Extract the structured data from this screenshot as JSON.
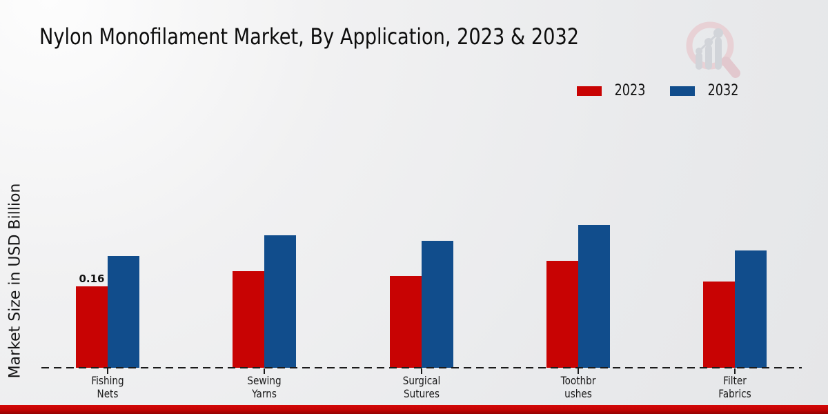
{
  "page": {
    "title": "Nylon Monofilament Market, By Application, 2023 & 2032",
    "background_color": "#ebecee",
    "bottom_bar_color": "#c20404"
  },
  "logo": {
    "name": "market-research-future-watermark",
    "ring_color": "#e8cdd2",
    "bars_color": "#ced1d6"
  },
  "chart_data": {
    "type": "bar",
    "title": "Nylon Monofilament Market, By Application, 2023 & 2032",
    "xlabel": "",
    "ylabel": "Market Size in USD Billion",
    "categories": [
      "Fishing Nets",
      "Sewing Yarns",
      "Surgical Sutures",
      "Toothbrushes",
      "Filter Fabrics"
    ],
    "category_lines": [
      [
        "Fishing",
        "Nets"
      ],
      [
        "Sewing",
        "Yarns"
      ],
      [
        "Surgical",
        "Sutures"
      ],
      [
        "Toothbr",
        "ushes"
      ],
      [
        "Filter",
        "Fabrics"
      ]
    ],
    "series": [
      {
        "name": "2023",
        "color": "#c80303",
        "values": [
          0.16,
          0.19,
          0.18,
          0.21,
          0.17
        ]
      },
      {
        "name": "2032",
        "color": "#114d8c",
        "values": [
          0.22,
          0.26,
          0.25,
          0.28,
          0.23
        ]
      }
    ],
    "bar_label": {
      "text": "0.16",
      "series_index": 0,
      "category_index": 0
    },
    "ylim": [
      0,
      0.3
    ],
    "grid": false,
    "legend_position": "top-right",
    "baseline_style": "dashed"
  }
}
